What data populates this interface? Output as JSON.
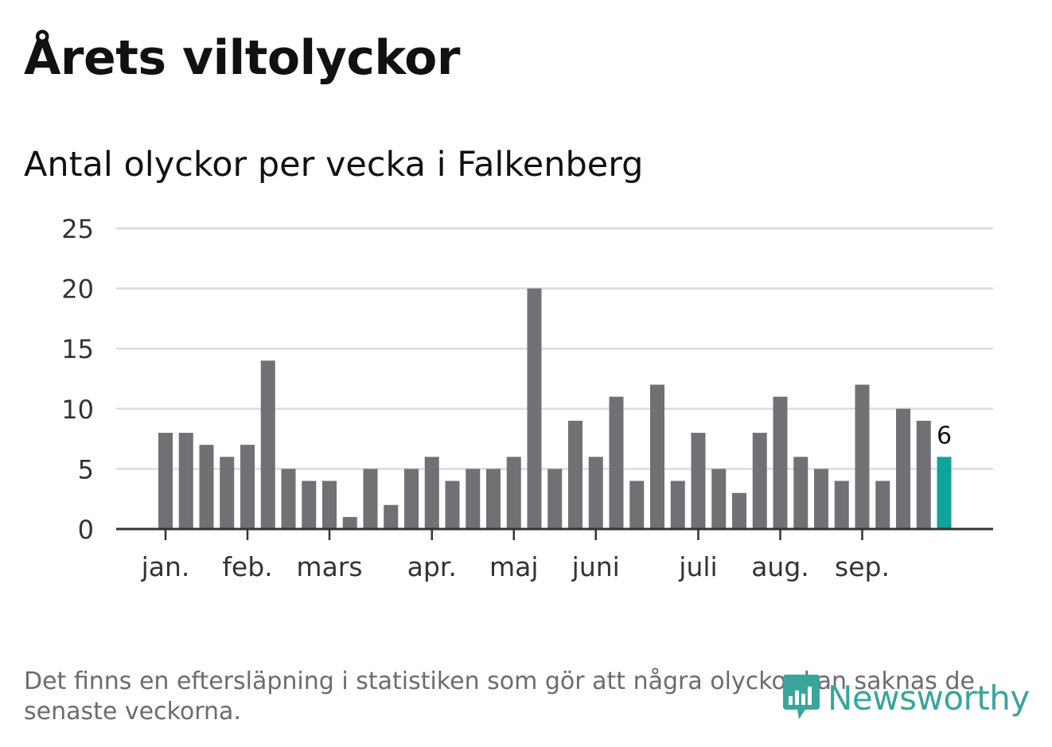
{
  "header": {
    "title": "Årets viltolyckor",
    "subtitle": "Antal olyckor per vecka i Falkenberg"
  },
  "footnote": "Det finns en eftersläpning i statistiken som gör att några olyckor kan saknas de senaste veckorna.",
  "logo": {
    "text": "Newsworthy"
  },
  "colors": {
    "bar": "#707075",
    "highlight": "#0fa399",
    "grid": "#dcdcdc",
    "axis": "#333333",
    "text": "#333333",
    "logo": "#3aa59b"
  },
  "chart_data": {
    "type": "bar",
    "title": "Antal olyckor per vecka i Falkenberg",
    "xlabel": "",
    "ylabel": "",
    "ylim": [
      0,
      25
    ],
    "yticks": [
      0,
      5,
      10,
      15,
      20,
      25
    ],
    "grid": true,
    "values": [
      8,
      8,
      7,
      6,
      7,
      14,
      5,
      4,
      4,
      1,
      5,
      2,
      5,
      6,
      4,
      5,
      5,
      6,
      20,
      5,
      9,
      6,
      11,
      4,
      12,
      4,
      8,
      5,
      3,
      8,
      11,
      6,
      5,
      4,
      12,
      4,
      10,
      9,
      6
    ],
    "x_ticks": [
      {
        "label": "jan.",
        "bar_index": 0
      },
      {
        "label": "feb.",
        "bar_index": 4
      },
      {
        "label": "mars",
        "bar_index": 8
      },
      {
        "label": "apr.",
        "bar_index": 13
      },
      {
        "label": "maj",
        "bar_index": 17
      },
      {
        "label": "juni",
        "bar_index": 21
      },
      {
        "label": "juli",
        "bar_index": 26
      },
      {
        "label": "aug.",
        "bar_index": 30
      },
      {
        "label": "sep.",
        "bar_index": 34
      }
    ],
    "highlight_index": 38,
    "highlight_label": "6"
  }
}
